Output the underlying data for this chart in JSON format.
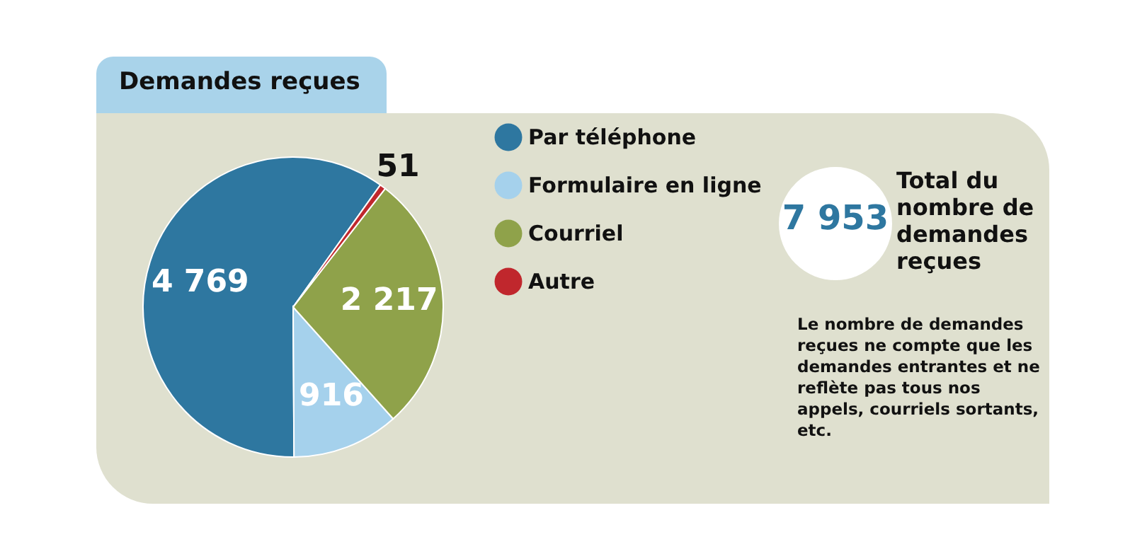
{
  "chart_data": {
    "type": "pie",
    "title": "Demandes reçues",
    "categories": [
      "Par téléphone",
      "Formulaire en ligne",
      "Courriel",
      "Autre"
    ],
    "values": [
      4769,
      916,
      2217,
      51
    ],
    "colors": [
      "#2e77a0",
      "#a5d1ec",
      "#8fa24a",
      "#c0272d"
    ],
    "value_labels": [
      "4 769",
      "916",
      "2 217",
      "51"
    ],
    "legend": "right",
    "annotations": [
      "7 953",
      "Total du nombre de demandes reçues",
      "Le nombre de demandes reçues ne compte que les demandes entrantes et ne reflète pas tous nos appels, courriels sortants, etc."
    ]
  }
}
